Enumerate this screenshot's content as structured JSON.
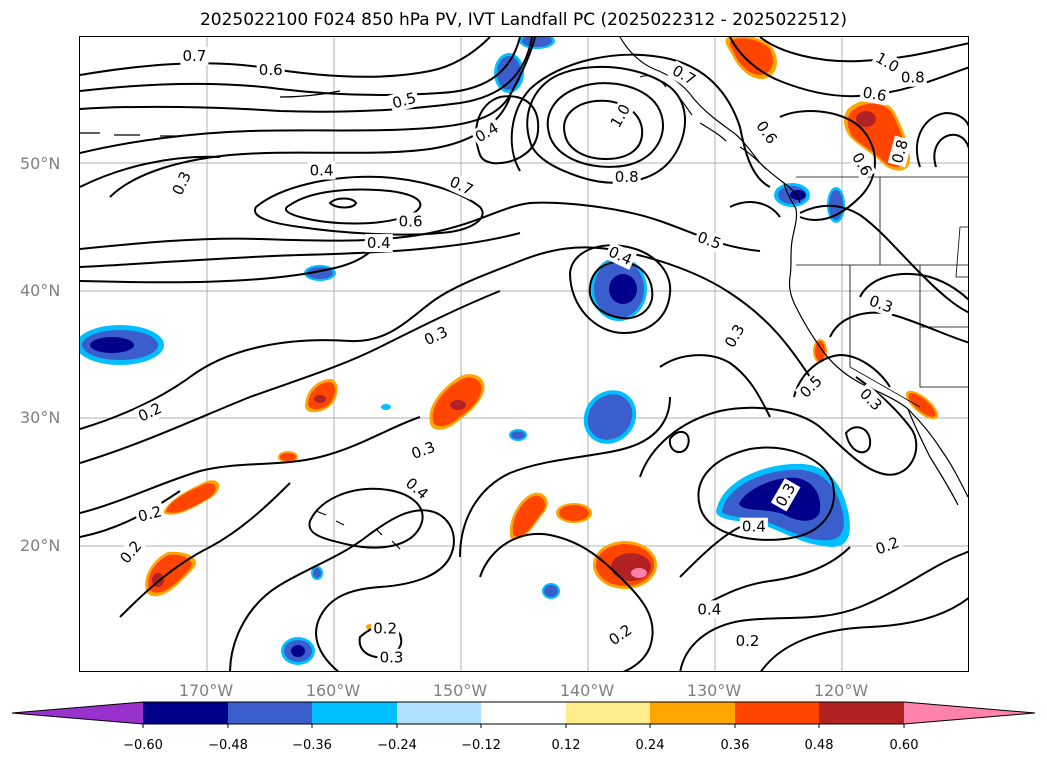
{
  "title": "2025022100 F024 850 hPa PV, IVT Landfall PC (2025022312 - 2025022512)",
  "lat_labels": [
    "50°N",
    "40°N",
    "30°N",
    "20°N"
  ],
  "lon_labels": [
    "170°W",
    "160°W",
    "150°W",
    "140°W",
    "130°W",
    "120°W"
  ],
  "colorbar": {
    "colors": [
      "#9932cc",
      "#00008b",
      "#3a5fcd",
      "#00bfff",
      "#b0e2ff",
      "#ffffff",
      "#ffec8b",
      "#ffa500",
      "#ff4500",
      "#b22222",
      "#ff82ab"
    ],
    "ticks": [
      "−0.60",
      "−0.48",
      "−0.36",
      "−0.24",
      "−0.12",
      "0.12",
      "0.24",
      "0.36",
      "0.48",
      "0.60"
    ]
  },
  "contour_labels": [
    {
      "text": "0.7",
      "lon": -171,
      "lat": 58.5,
      "rot": 0
    },
    {
      "text": "0.6",
      "lon": -165,
      "lat": 57.4,
      "rot": 0
    },
    {
      "text": "0.5",
      "lon": -154.5,
      "lat": 55.0,
      "rot": -15
    },
    {
      "text": "0.4",
      "lon": -148,
      "lat": 52.5,
      "rot": -30
    },
    {
      "text": "0.3",
      "lon": -172,
      "lat": 48.5,
      "rot": -65
    },
    {
      "text": "0.4",
      "lon": -161,
      "lat": 49.5,
      "rot": 0
    },
    {
      "text": "0.7",
      "lon": -150,
      "lat": 48.3,
      "rot": 25
    },
    {
      "text": "0.6",
      "lon": -154,
      "lat": 45.5,
      "rot": 0
    },
    {
      "text": "0.4",
      "lon": -156.5,
      "lat": 43.8,
      "rot": 0
    },
    {
      "text": "1.0",
      "lon": -137.5,
      "lat": 53.8,
      "rot": -60
    },
    {
      "text": "0.8",
      "lon": -137,
      "lat": 49.0,
      "rot": 0
    },
    {
      "text": "0.5",
      "lon": -130.5,
      "lat": 44.0,
      "rot": 20
    },
    {
      "text": "0.4",
      "lon": -137.5,
      "lat": 42.8,
      "rot": 25
    },
    {
      "text": "0.6",
      "lon": -126,
      "lat": 52.5,
      "rot": 55
    },
    {
      "text": "0.7",
      "lon": -132.5,
      "lat": 57.0,
      "rot": 30
    },
    {
      "text": "1.0",
      "lon": -116.5,
      "lat": 58.0,
      "rot": 30
    },
    {
      "text": "0.8",
      "lon": -114.5,
      "lat": 56.8,
      "rot": 0
    },
    {
      "text": "0.6",
      "lon": -117.5,
      "lat": 55.5,
      "rot": 10
    },
    {
      "text": "0.8",
      "lon": -115.5,
      "lat": 51.0,
      "rot": -75
    },
    {
      "text": "0.6",
      "lon": -118.5,
      "lat": 50.0,
      "rot": 60
    },
    {
      "text": "0.3",
      "lon": -152,
      "lat": 36.5,
      "rot": -25
    },
    {
      "text": "0.3",
      "lon": -128.5,
      "lat": 36.5,
      "rot": -60
    },
    {
      "text": "0.3",
      "lon": -117.0,
      "lat": 39.0,
      "rot": 20
    },
    {
      "text": "0.5",
      "lon": -122.5,
      "lat": 32.5,
      "rot": -45
    },
    {
      "text": "0.3",
      "lon": -117.8,
      "lat": 31.5,
      "rot": 45
    },
    {
      "text": "0.2",
      "lon": -174.5,
      "lat": 30.5,
      "rot": -25
    },
    {
      "text": "0.3",
      "lon": -153,
      "lat": 27.5,
      "rot": -20
    },
    {
      "text": "0.4",
      "lon": -153.5,
      "lat": 24.5,
      "rot": 40
    },
    {
      "text": "0.2",
      "lon": -174.5,
      "lat": 22.5,
      "rot": -15
    },
    {
      "text": "0.2",
      "lon": -176,
      "lat": 19.5,
      "rot": -50
    },
    {
      "text": "0.3",
      "lon": -124.5,
      "lat": 24.0,
      "rot": -60
    },
    {
      "text": "0.4",
      "lon": -127,
      "lat": 21.5,
      "rot": 0
    },
    {
      "text": "0.2",
      "lon": -116.5,
      "lat": 20.0,
      "rot": -20
    },
    {
      "text": "0.4",
      "lon": -130.5,
      "lat": 15.0,
      "rot": 0
    },
    {
      "text": "0.2",
      "lon": -137.5,
      "lat": 13.0,
      "rot": -35
    },
    {
      "text": "0.2",
      "lon": -127.5,
      "lat": 12.5,
      "rot": 0
    },
    {
      "text": "0.2",
      "lon": -156,
      "lat": 13.5,
      "rot": 0
    },
    {
      "text": "0.3",
      "lon": -155.5,
      "lat": 11.2,
      "rot": 0
    }
  ]
}
